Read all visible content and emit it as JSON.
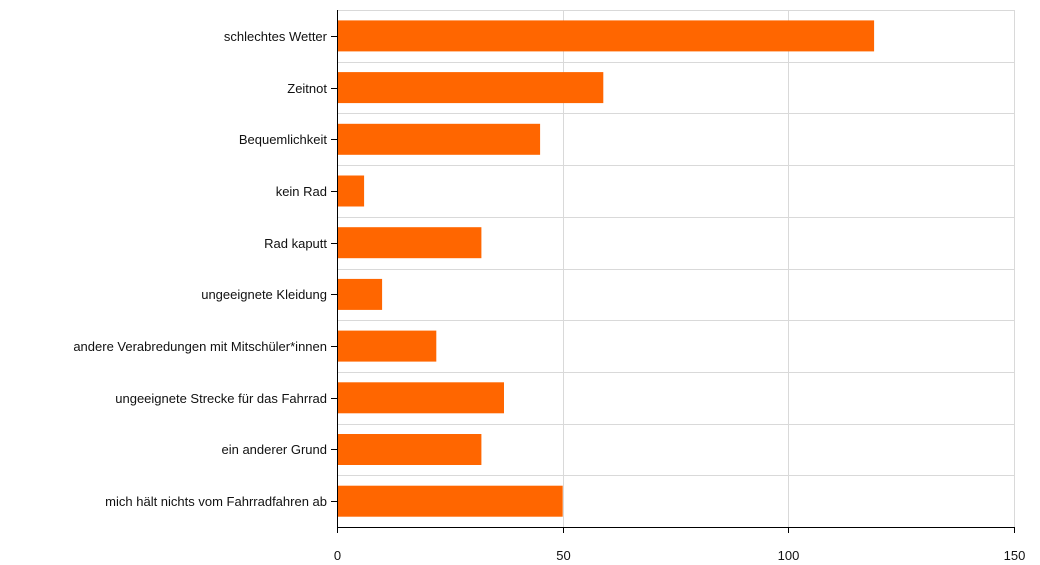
{
  "chart_data": {
    "type": "bar",
    "orientation": "horizontal",
    "categories": [
      "schlechtes Wetter",
      "Zeitnot",
      "Bequemlichkeit",
      "kein Rad",
      "Rad kaputt",
      "ungeeignete Kleidung",
      "andere Verabredungen mit Mitschüler*innen",
      "ungeeignete Strecke für das Fahrrad",
      "ein anderer Grund",
      "mich hält nichts vom Fahrradfahren ab"
    ],
    "values": [
      119,
      59,
      45,
      6,
      32,
      10,
      22,
      37,
      32,
      50
    ],
    "xlim": [
      0,
      150
    ],
    "xticks": [
      0,
      50,
      100,
      150
    ],
    "title": "",
    "xlabel": "",
    "ylabel": "",
    "grid": true,
    "bar_color": "#ff6600",
    "grid_color": "#d9d9d9"
  }
}
